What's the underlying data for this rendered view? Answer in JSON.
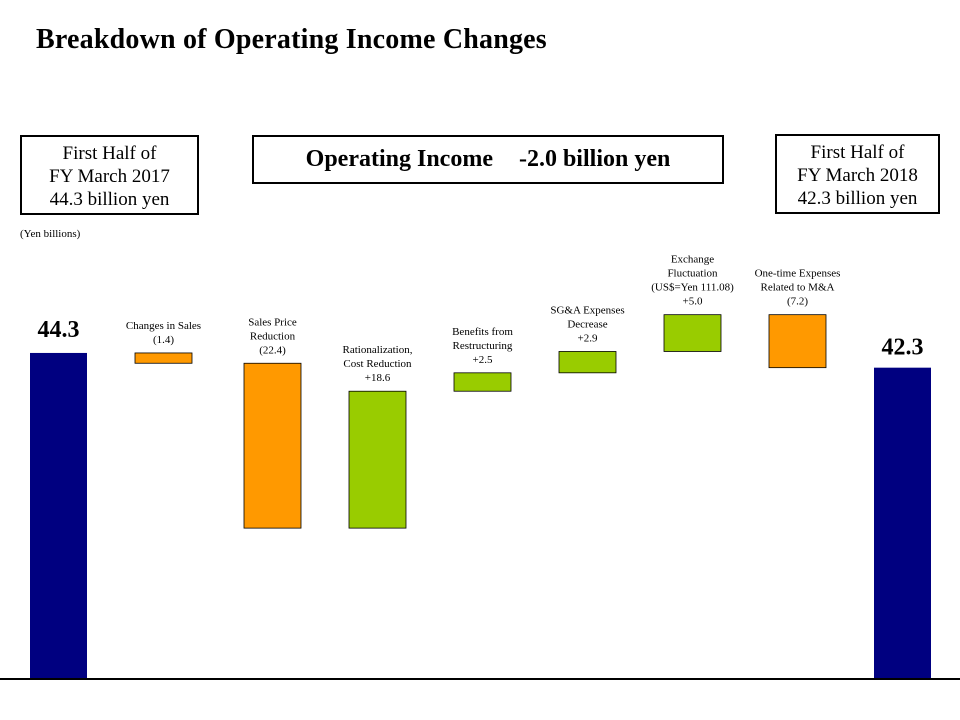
{
  "title": "Breakdown of Operating Income Changes",
  "start_box": {
    "lines": [
      "First Half of",
      "FY March 2017",
      "44.3 billion yen"
    ]
  },
  "end_box": {
    "lines": [
      "First Half of",
      "FY March 2018",
      "42.3 billion yen"
    ]
  },
  "summary_box": {
    "label": "Operating Income",
    "value": "-2.0 billion yen"
  },
  "unit_label": "(Yen billions)",
  "colors": {
    "total": "#000080",
    "decrease": "#FF9900",
    "increase": "#99CC00",
    "axis": "#000000"
  },
  "chart_data": {
    "type": "bar",
    "subtype": "waterfall",
    "ylim": [
      0,
      52
    ],
    "start": {
      "value": 44.3,
      "value_label": "44.3"
    },
    "end": {
      "value": 42.3,
      "value_label": "42.3"
    },
    "steps": [
      {
        "label_lines": [
          "Changes in Sales"
        ],
        "value": -1.4,
        "value_label": "(1.4)"
      },
      {
        "label_lines": [
          "Sales Price",
          "Reduction"
        ],
        "value": -22.4,
        "value_label": "(22.4)"
      },
      {
        "label_lines": [
          "Rationalization,",
          "Cost Reduction"
        ],
        "value": 18.6,
        "value_label": "+18.6"
      },
      {
        "label_lines": [
          "Benefits from",
          "Restructuring"
        ],
        "value": 2.5,
        "value_label": "+2.5"
      },
      {
        "label_lines": [
          "SG&A Expenses",
          "Decrease"
        ],
        "value": 2.9,
        "value_label": "+2.9"
      },
      {
        "label_lines": [
          "Exchange",
          "Fluctuation",
          "(US$=Yen 111.08)"
        ],
        "value": 5.0,
        "value_label": "+5.0"
      },
      {
        "label_lines": [
          "One-time Expenses",
          "Related to M&A"
        ],
        "value": -7.2,
        "value_label": "(7.2)"
      }
    ]
  }
}
